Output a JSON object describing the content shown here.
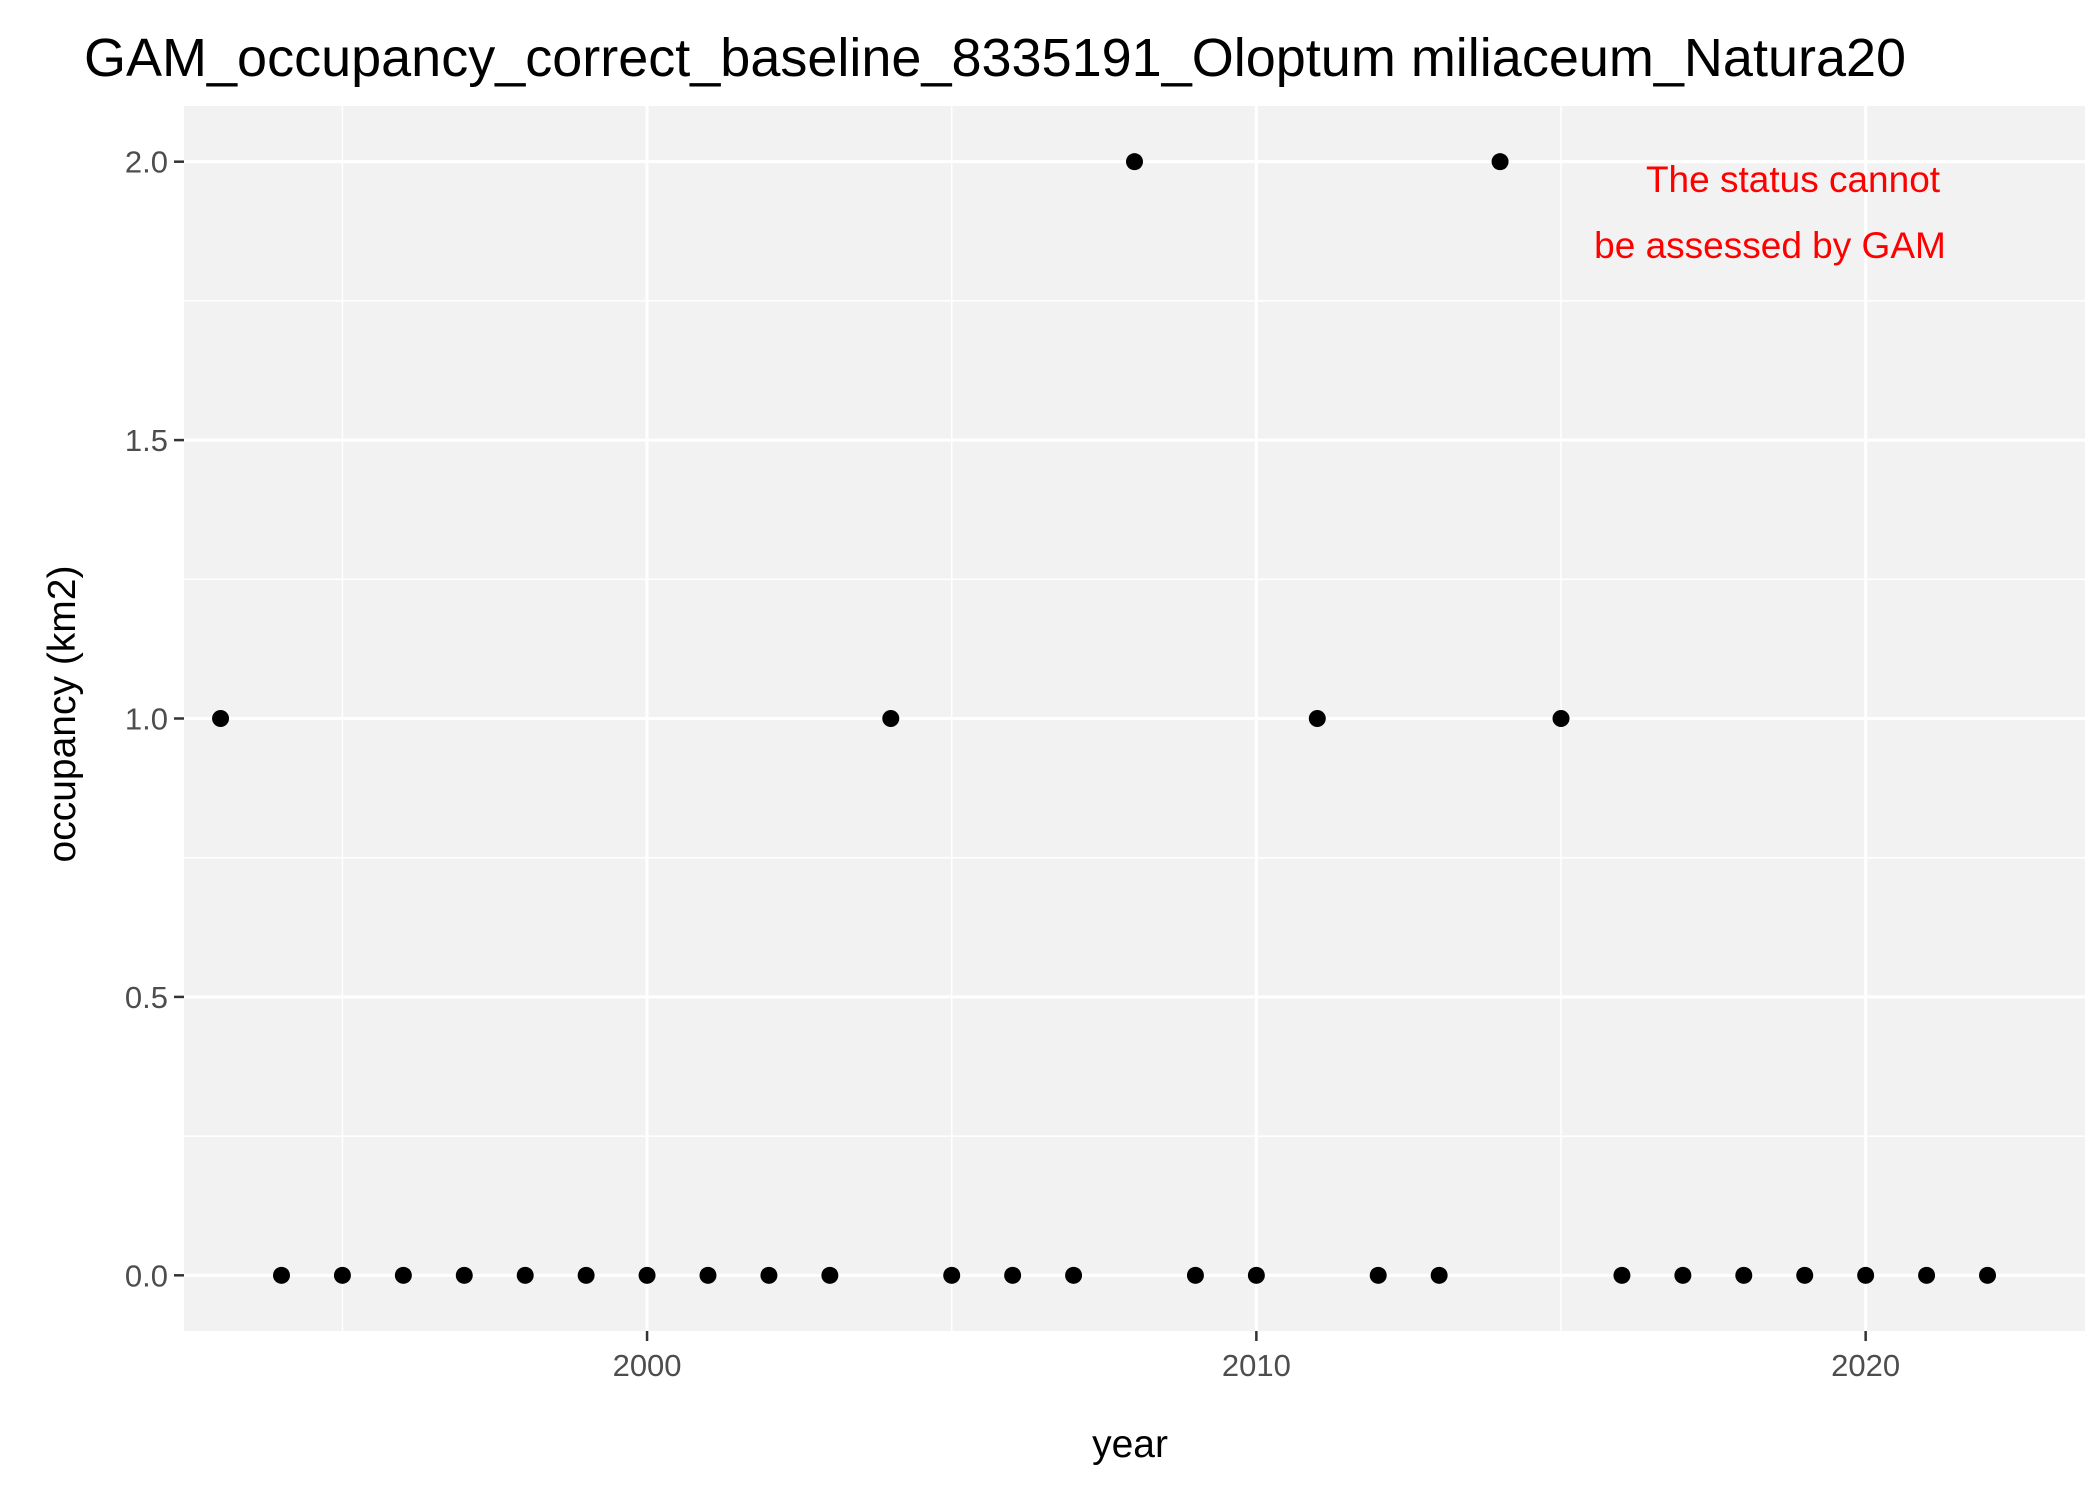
{
  "chart_data": {
    "type": "scatter",
    "title": "GAM_occupancy_correct_baseline_8335191_Oloptum miliaceum_Natura20",
    "xlabel": "year",
    "ylabel": "occupancy (km2)",
    "xlim": [
      1992.4,
      2023.6
    ],
    "ylim": [
      -0.1,
      2.1
    ],
    "x_ticks": [
      2000,
      2010,
      2020
    ],
    "x_tick_labels": [
      "2000",
      "2010",
      "2020"
    ],
    "x_minor_ticks": [
      1995,
      2005,
      2015
    ],
    "y_ticks": [
      0.0,
      0.5,
      1.0,
      1.5,
      2.0
    ],
    "y_tick_labels": [
      "0.0",
      "0.5",
      "1.0",
      "1.5",
      "2.0"
    ],
    "y_minor_ticks": [
      0.25,
      0.75,
      1.25,
      1.75
    ],
    "points": [
      {
        "x": 1993,
        "y": 1
      },
      {
        "x": 1994,
        "y": 0
      },
      {
        "x": 1995,
        "y": 0
      },
      {
        "x": 1996,
        "y": 0
      },
      {
        "x": 1997,
        "y": 0
      },
      {
        "x": 1998,
        "y": 0
      },
      {
        "x": 1999,
        "y": 0
      },
      {
        "x": 2000,
        "y": 0
      },
      {
        "x": 2001,
        "y": 0
      },
      {
        "x": 2002,
        "y": 0
      },
      {
        "x": 2003,
        "y": 0
      },
      {
        "x": 2004,
        "y": 1
      },
      {
        "x": 2005,
        "y": 0
      },
      {
        "x": 2006,
        "y": 0
      },
      {
        "x": 2007,
        "y": 0
      },
      {
        "x": 2008,
        "y": 2
      },
      {
        "x": 2009,
        "y": 0
      },
      {
        "x": 2010,
        "y": 0
      },
      {
        "x": 2011,
        "y": 1
      },
      {
        "x": 2012,
        "y": 0
      },
      {
        "x": 2013,
        "y": 0
      },
      {
        "x": 2014,
        "y": 2
      },
      {
        "x": 2015,
        "y": 1
      },
      {
        "x": 2016,
        "y": 0
      },
      {
        "x": 2017,
        "y": 0
      },
      {
        "x": 2018,
        "y": 0
      },
      {
        "x": 2019,
        "y": 0
      },
      {
        "x": 2020,
        "y": 0
      },
      {
        "x": 2021,
        "y": 0
      },
      {
        "x": 2022,
        "y": 0
      }
    ],
    "annotation": {
      "lines": [
        "The status cannot",
        "be assessed by GAM"
      ],
      "color": "#ff0000",
      "placement": "top-right"
    },
    "panel_background": "#f2f2f2",
    "grid": true,
    "point_color": "#000000"
  }
}
